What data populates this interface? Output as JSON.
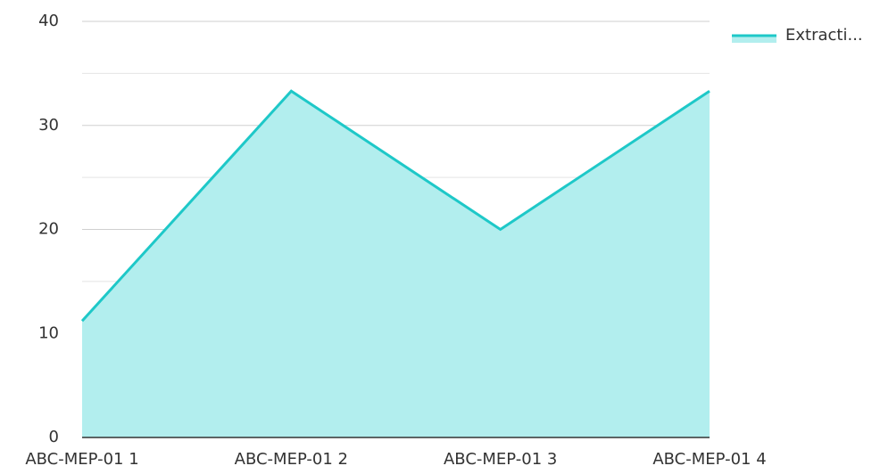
{
  "chart_data": {
    "type": "area",
    "categories": [
      "ABC-MEP-01 1",
      "ABC-MEP-01 2",
      "ABC-MEP-01 3",
      "ABC-MEP-01 4"
    ],
    "series": [
      {
        "name": "Extracti...",
        "color": "#1ec8c8",
        "fill": "#b2eeee",
        "values": [
          11.2,
          33.3,
          20.0,
          33.3
        ]
      }
    ],
    "ylim": [
      0,
      40
    ],
    "yticks": [
      0,
      10,
      20,
      30,
      40
    ],
    "minor_yticks": [
      5,
      15,
      25,
      35
    ],
    "grid": true,
    "legend": "top-right"
  }
}
